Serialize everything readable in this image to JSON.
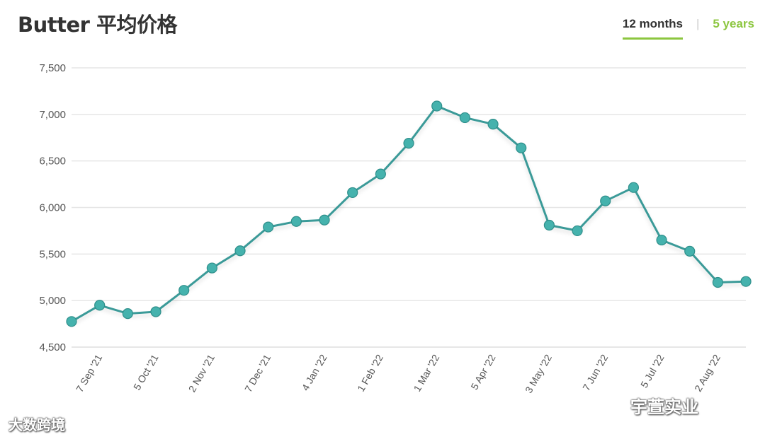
{
  "header": {
    "title": "Butter 平均价格",
    "tabs": [
      {
        "label": "12 months",
        "active": true
      },
      {
        "label": "5 years",
        "active": false
      }
    ]
  },
  "watermarks": {
    "left": "大数跨境",
    "right": "宇萱实业"
  },
  "colors": {
    "line": "#3a9a98",
    "marker": "#45b2ad",
    "accent": "#8cc63f",
    "grid": "#e6e6e6"
  },
  "chart_data": {
    "type": "line",
    "title": "Butter 平均价格",
    "xlabel": "",
    "ylabel": "",
    "ylim": [
      4500,
      7500
    ],
    "yticks": [
      7500,
      7000,
      6500,
      6000,
      5500,
      5000,
      4500
    ],
    "ytick_labels": [
      "7,500",
      "7,000",
      "6,500",
      "6,000",
      "5,500",
      "5,000",
      "4,500"
    ],
    "xtick_labels": [
      "7 Sep '21",
      "5 Oct '21",
      "2 Nov '21",
      "7 Dec '21",
      "4 Jan '22",
      "1 Feb '22",
      "1 Mar '22",
      "5 Apr '22",
      "3 May '22",
      "7 Jun '22",
      "5 Jul '22",
      "2 Aug '22"
    ],
    "grid": true,
    "legend": "none",
    "series": [
      {
        "values": [
          4775,
          4950,
          4860,
          4880,
          5110,
          5350,
          5535,
          5790,
          5850,
          5865,
          6160,
          6360,
          6690,
          7090,
          6965,
          6895,
          6640,
          5810,
          5750,
          6070,
          6215,
          5650,
          5530,
          5195,
          5205
        ]
      }
    ]
  }
}
